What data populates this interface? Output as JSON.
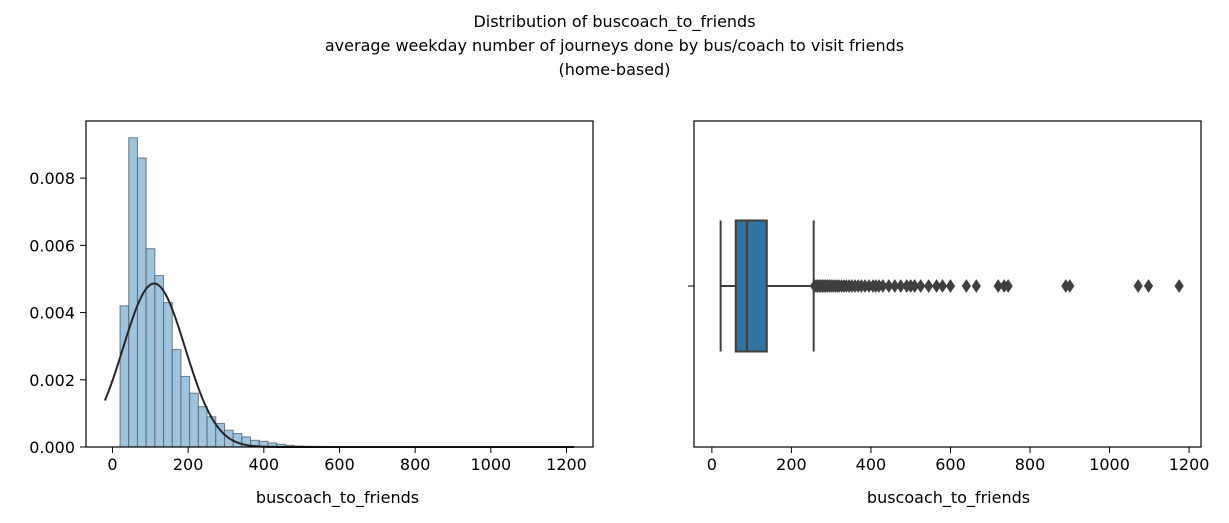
{
  "figure": {
    "title_lines": [
      "Distribution of buscoach_to_friends",
      "average weekday number of journeys done by bus/coach to visit friends",
      "(home-based)"
    ]
  },
  "chart_data": [
    {
      "type": "histogram",
      "xlabel": "buscoach_to_friends",
      "ylabel": "",
      "xlim": [
        -70,
        1270
      ],
      "ylim": [
        0,
        0.0097
      ],
      "xticks": [
        "0",
        "200",
        "400",
        "600",
        "800",
        "1000",
        "1200"
      ],
      "yticks": [
        "0.000",
        "0.002",
        "0.004",
        "0.006",
        "0.008"
      ],
      "bin_edges_start": 20,
      "bin_width": 23,
      "bin_density": [
        0.0042,
        0.0092,
        0.0086,
        0.0059,
        0.0051,
        0.0043,
        0.0029,
        0.0021,
        0.0016,
        0.0012,
        0.0009,
        0.0007,
        0.0005,
        0.0004,
        0.0003,
        0.0002,
        0.00017,
        0.00012,
        8e-05,
        5e-05,
        3e-05,
        2e-05,
        2e-05,
        1e-05,
        1e-05,
        1e-05,
        1e-05,
        1e-05,
        1e-05,
        0.0,
        1e-05,
        0.0,
        1e-05,
        0.0,
        0.0,
        0.0,
        0.0,
        0.0,
        0.0,
        0.0,
        0.0,
        0.0,
        0.0,
        0.0,
        0.0,
        0.0,
        0.0,
        0.0,
        0.0,
        0.0,
        0.0,
        0.0
      ],
      "bar_color": "#9ec4de",
      "bar_edge": "#4a5a66",
      "fit_curve": {
        "type": "normal",
        "mean": 110,
        "std": 82,
        "x_range": [
          -20,
          1220
        ],
        "color": "#262626"
      }
    },
    {
      "type": "box",
      "xlabel": "buscoach_to_friends",
      "xlim": [
        -45,
        1230
      ],
      "xticks": [
        "0",
        "200",
        "400",
        "600",
        "800",
        "1000",
        "1200"
      ],
      "whisker_low": 22,
      "q1": 60,
      "median": 88,
      "q3": 138,
      "whisker_high": 256,
      "outliers": [
        258,
        262,
        266,
        270,
        274,
        278,
        282,
        286,
        290,
        295,
        300,
        305,
        310,
        315,
        320,
        326,
        332,
        338,
        345,
        352,
        360,
        368,
        376,
        385,
        395,
        405,
        412,
        420,
        430,
        445,
        460,
        475,
        490,
        500,
        510,
        525,
        545,
        565,
        580,
        600,
        640,
        665,
        720,
        735,
        745,
        890,
        900,
        1072,
        1098,
        1175
      ],
      "box_color": "#3274a1",
      "line_color": "#3f3f3f"
    }
  ]
}
